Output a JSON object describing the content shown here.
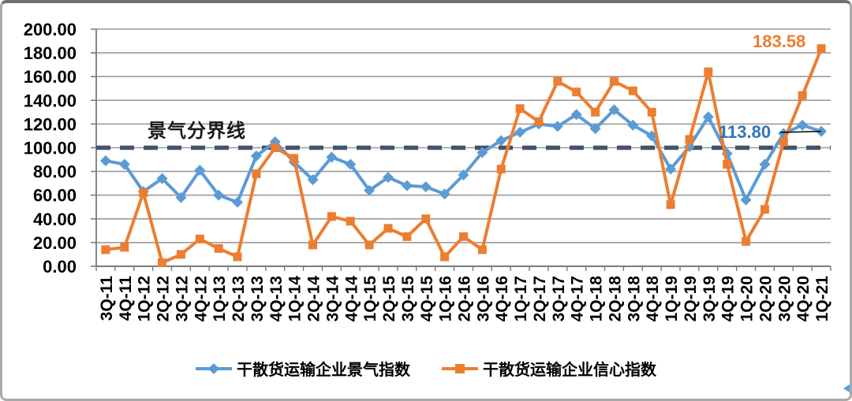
{
  "chart_data": {
    "type": "line",
    "title": "",
    "categories": [
      "3Q-11",
      "4Q-11",
      "1Q-12",
      "2Q-12",
      "3Q-12",
      "4Q-12",
      "1Q-13",
      "2Q-13",
      "3Q-13",
      "4Q-13",
      "1Q-14",
      "2Q-14",
      "3Q-14",
      "4Q-14",
      "1Q-15",
      "2Q-15",
      "3Q-15",
      "4Q-15",
      "1Q-16",
      "2Q-16",
      "3Q-16",
      "4Q-16",
      "1Q-17",
      "2Q-17",
      "3Q-17",
      "4Q-17",
      "1Q-18",
      "2Q-18",
      "3Q-18",
      "4Q-18",
      "1Q-19",
      "2Q-19",
      "3Q-19",
      "4Q-19",
      "1Q-20",
      "2Q-20",
      "3Q-20",
      "4Q-20",
      "1Q-21"
    ],
    "series": [
      {
        "name": "干散货运输企业景气指数",
        "color": "#5B9BD5",
        "marker": "diamond",
        "values": [
          89,
          86,
          63,
          74,
          58,
          81,
          60,
          54,
          93,
          105,
          88,
          73,
          92,
          86,
          64,
          75,
          68,
          67,
          61,
          77,
          96,
          106,
          113,
          120,
          118,
          128,
          116,
          132,
          119,
          110,
          82,
          101,
          126,
          95,
          56,
          86,
          112,
          119,
          113.8
        ],
        "last_value_label": "113.80"
      },
      {
        "name": "干散货运输企业信心指数",
        "color": "#ED7D31",
        "marker": "square",
        "values": [
          14,
          16,
          62,
          3,
          10,
          23,
          15,
          8,
          78,
          100,
          91,
          18,
          42,
          38,
          18,
          32,
          25,
          40,
          8,
          25,
          14,
          82,
          133,
          122,
          156,
          147,
          130,
          156,
          148,
          130,
          52,
          107,
          164,
          86,
          21,
          48,
          105,
          144,
          183.58
        ],
        "last_value_label": "183.58"
      }
    ],
    "y_axis": {
      "min": 0,
      "max": 200,
      "step": 20,
      "tick_labels": [
        "200.00",
        "180.00",
        "160.00",
        "140.00",
        "120.00",
        "100.00",
        "80.00",
        "60.00",
        "40.00",
        "20.00",
        "0.00"
      ]
    },
    "reference_line": {
      "value": 100,
      "label": "景气分界线",
      "color": "#44546A",
      "style": "dashed"
    },
    "annotations": [
      {
        "text": "景气分界线",
        "color": "#1a1a1a"
      },
      {
        "text": "113.80",
        "color": "#2E75B6"
      },
      {
        "text": "183.58",
        "color": "#ED7D31"
      }
    ],
    "legend_position": "bottom",
    "grid": true,
    "grid_color": "#9a9a9a",
    "axis_color": "#7a7a7a"
  }
}
